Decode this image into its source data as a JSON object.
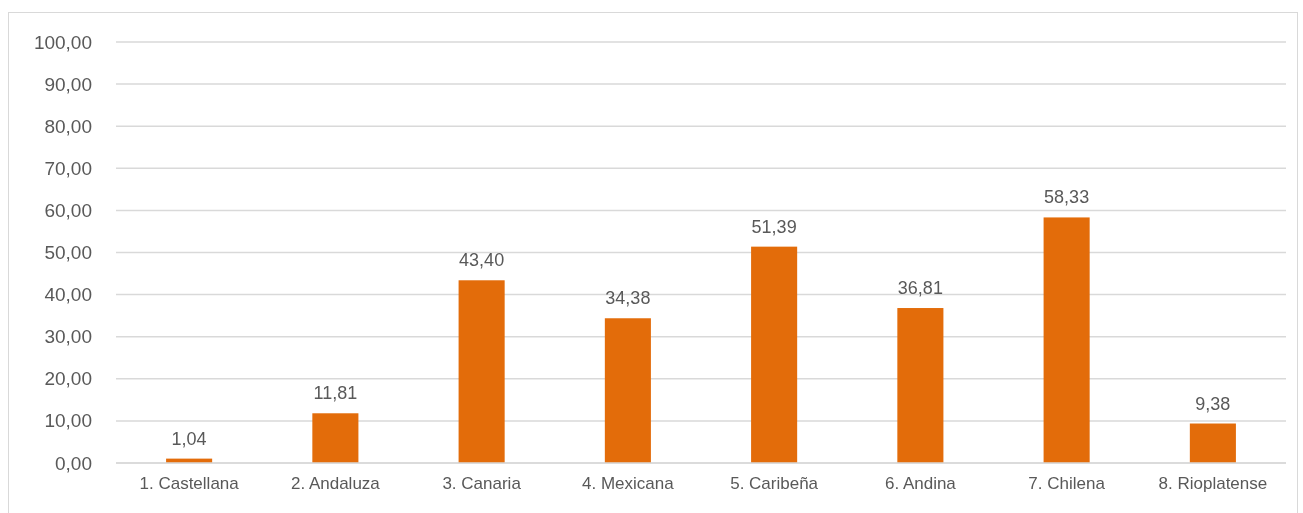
{
  "chart_data": {
    "type": "bar",
    "categories": [
      "1. Castellana",
      "2. Andaluza",
      "3. Canaria",
      "4. Mexicana",
      "5. Caribeña",
      "6. Andina",
      "7. Chilena",
      "8. Rioplatense"
    ],
    "values": [
      1.04,
      11.81,
      43.4,
      34.38,
      51.39,
      36.81,
      58.33,
      9.38
    ],
    "value_labels": [
      "1,04",
      "11,81",
      "43,40",
      "34,38",
      "51,39",
      "36,81",
      "58,33",
      "9,38"
    ],
    "color": "#e36c0a",
    "ylim": [
      0,
      100
    ],
    "yticks": [
      {
        "value": 0,
        "label": "0,00"
      },
      {
        "value": 10,
        "label": "10,00"
      },
      {
        "value": 20,
        "label": "20,00"
      },
      {
        "value": 30,
        "label": "30,00"
      },
      {
        "value": 40,
        "label": "40,00"
      },
      {
        "value": 50,
        "label": "50,00"
      },
      {
        "value": 60,
        "label": "60,00"
      },
      {
        "value": 70,
        "label": "70,00"
      },
      {
        "value": 80,
        "label": "80,00"
      },
      {
        "value": 90,
        "label": "90,00"
      },
      {
        "value": 100,
        "label": "100,00"
      }
    ],
    "grid": "y"
  }
}
